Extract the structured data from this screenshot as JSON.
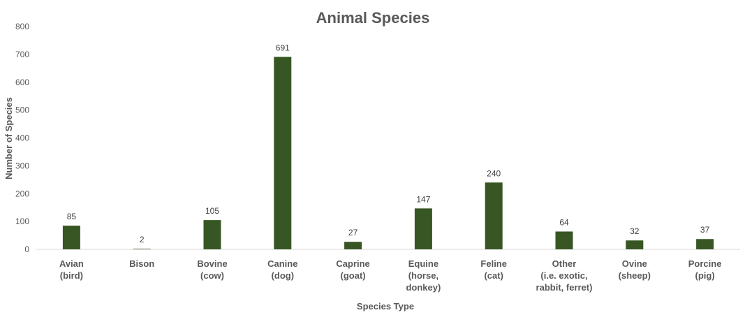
{
  "chart_data": {
    "type": "bar",
    "title": "Animal Species",
    "xlabel": "Species Type",
    "ylabel": "Number of Species",
    "ylim": [
      0,
      800
    ],
    "yticks": [
      0,
      100,
      200,
      300,
      400,
      500,
      600,
      700,
      800
    ],
    "categories": [
      [
        "Avian",
        "(bird)"
      ],
      [
        "Bison"
      ],
      [
        "Bovine",
        "(cow)"
      ],
      [
        "Canine",
        "(dog)"
      ],
      [
        "Caprine",
        "(goat)"
      ],
      [
        "Equine",
        "(horse,",
        "donkey)"
      ],
      [
        "Feline",
        "(cat)"
      ],
      [
        "Other",
        "(i.e. exotic,",
        "rabbit, ferret)"
      ],
      [
        "Ovine",
        "(sheep)"
      ],
      [
        "Porcine",
        "(pig)"
      ]
    ],
    "values": [
      85,
      2,
      105,
      691,
      27,
      147,
      240,
      64,
      32,
      37
    ],
    "data_labels": true,
    "grid": false,
    "legend": "none",
    "colors": {
      "bar": "#375623",
      "axis": "#d9d9d9",
      "text": "#595959"
    }
  }
}
